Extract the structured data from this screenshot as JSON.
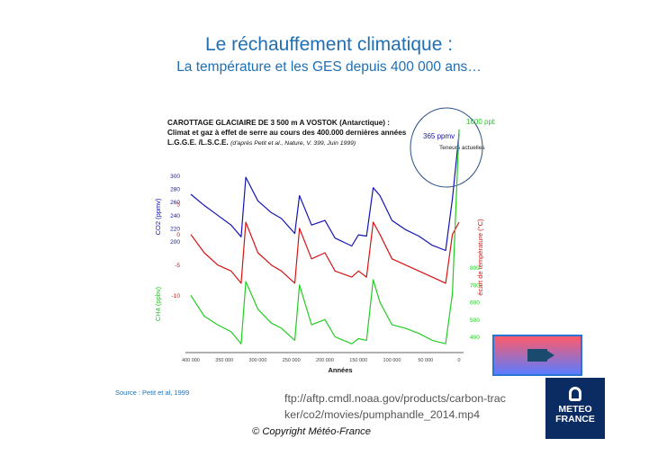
{
  "slide": {
    "title": "Le réchauffement climatique :",
    "subtitle": "La température et les GES depuis 400 000 ans…",
    "source": "Source : Petit et al, 1999",
    "url_line1": "ftp://aftp.cmdl.noaa.gov/products/carbon-trac",
    "url_line2": "ker/co2/movies/pumphandle_2014.mp4",
    "copyright": "© Copyright Météo-France",
    "logo_line1": "METEO",
    "logo_line2": "FRANCE"
  },
  "chart_header": {
    "line1": "CAROTTAGE GLACIAIRE DE 3 500 m A VOSTOK (Antarctique) :",
    "line2": "Climat et gaz à effet de serre au cours des 400.000 dernières années",
    "line3": "L.G.G.E. /L.S.C.E.",
    "line3_ref": "(d'après Petit et al., Nature, V. 399, Juin 1999)"
  },
  "colors": {
    "co2": "#1414b4",
    "temp": "#d41414",
    "ch4": "#22cc22",
    "title": "#1f6fb4"
  },
  "chart_data": {
    "type": "line",
    "xlabel": "Années",
    "x_ticks": [
      "400 000",
      "350 000",
      "300 000",
      "250 000",
      "200 000",
      "150 000",
      "100 000",
      "50 000",
      "0"
    ],
    "x": [
      400000,
      380000,
      360000,
      340000,
      325000,
      318000,
      300000,
      280000,
      265000,
      245000,
      238000,
      220000,
      200000,
      185000,
      160000,
      150000,
      138000,
      128000,
      118000,
      100000,
      80000,
      60000,
      40000,
      20000,
      10000,
      0
    ],
    "series": [
      {
        "name": "CO2 (ppmv)",
        "axis": "CO2 (ppmv)",
        "ticks": [
          200,
          220,
          240,
          260,
          280,
          300
        ],
        "ylim": [
          195,
          305
        ],
        "values": [
          272,
          255,
          240,
          225,
          207,
          298,
          262,
          244,
          235,
          212,
          270,
          225,
          232,
          205,
          193,
          210,
          208,
          282,
          270,
          232,
          218,
          208,
          194,
          186,
          265,
          365
        ]
      },
      {
        "name": "écart de température (°C)",
        "axis": "écart de température (°C)",
        "ticks": [
          5,
          0,
          -5,
          -10
        ],
        "ylim": [
          -12,
          6
        ],
        "values": [
          0,
          -3,
          -5,
          -6,
          -8,
          2,
          -3,
          -5,
          -6,
          -8,
          1,
          -4,
          -3,
          -6,
          -7,
          -6,
          -7,
          2,
          0,
          -4,
          -5,
          -6,
          -7,
          -8,
          0,
          2
        ]
      },
      {
        "name": "CH4 (ppbv)",
        "axis": "CH4 (ppbv)",
        "ticks": [
          400,
          500,
          600,
          700,
          800
        ],
        "ylim": [
          330,
          850
        ],
        "values": [
          640,
          520,
          470,
          430,
          360,
          720,
          560,
          480,
          450,
          380,
          700,
          470,
          500,
          400,
          360,
          390,
          380,
          730,
          600,
          470,
          450,
          420,
          380,
          360,
          650,
          1600
        ]
      }
    ],
    "annotations": {
      "ch4_now": "1600 ppbv",
      "co2_now": "365 ppmv",
      "current": "Teneurs actuelles"
    }
  }
}
